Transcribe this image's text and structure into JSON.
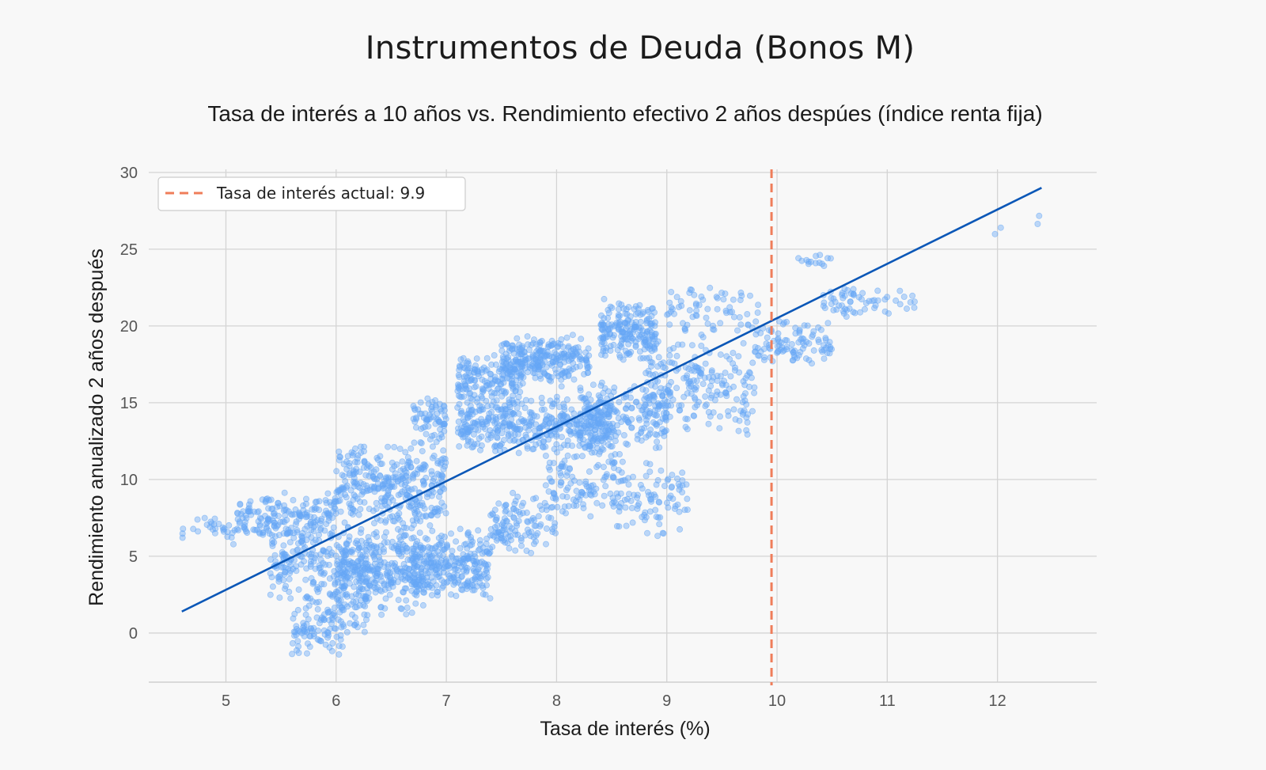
{
  "page": {
    "title": "Instrumentos de Deuda (Bonos M)",
    "subtitle": "Tasa de interés a 10 años vs. Rendimiento efectivo 2 años despúes (índice renta fija)"
  },
  "chart_data": {
    "type": "scatter",
    "xlabel": "Tasa de interés (%)",
    "ylabel": "Rendimiento anualizado 2 años después",
    "xlim": [
      4.3,
      12.9
    ],
    "ylim": [
      -3.2,
      30.2
    ],
    "xticks": [
      5,
      6,
      7,
      8,
      9,
      10,
      11,
      12
    ],
    "yticks": [
      0,
      5,
      10,
      15,
      20,
      25,
      30
    ],
    "grid": true,
    "legend": {
      "placement": "top-left",
      "entries": [
        "Tasa de interés actual: 9.9"
      ]
    },
    "colors": {
      "points": "#66a8f5",
      "trend": "#0b57b7",
      "current_rate": "#ef7d5a",
      "grid": "#d4d4d4"
    },
    "current_rate": {
      "label": "Tasa de interés actual: 9.9",
      "x": 9.95
    },
    "trend_line": {
      "x": [
        4.6,
        12.4
      ],
      "y": [
        1.4,
        29.0
      ]
    },
    "point_clusters": [
      {
        "x": [
          4.6,
          5.8
        ],
        "y": [
          5.5,
          8.0
        ],
        "n": 70
      },
      {
        "x": [
          5.1,
          6.0
        ],
        "y": [
          6.2,
          9.2
        ],
        "n": 150
      },
      {
        "x": [
          5.6,
          6.1
        ],
        "y": [
          -1.5,
          2.0
        ],
        "n": 80
      },
      {
        "x": [
          5.7,
          6.3
        ],
        "y": [
          -0.8,
          4.0
        ],
        "n": 60
      },
      {
        "x": [
          5.4,
          6.4
        ],
        "y": [
          2.0,
          7.0
        ],
        "n": 230
      },
      {
        "x": [
          6.0,
          6.8
        ],
        "y": [
          1.0,
          7.0
        ],
        "n": 280
      },
      {
        "x": [
          6.0,
          7.0
        ],
        "y": [
          6.5,
          12.5
        ],
        "n": 350
      },
      {
        "x": [
          6.7,
          7.4
        ],
        "y": [
          2.0,
          7.0
        ],
        "n": 280
      },
      {
        "x": [
          6.7,
          7.0
        ],
        "y": [
          12.0,
          15.8
        ],
        "n": 70
      },
      {
        "x": [
          7.1,
          7.7
        ],
        "y": [
          14.5,
          18.3
        ],
        "n": 160
      },
      {
        "x": [
          7.1,
          8.5
        ],
        "y": [
          11.5,
          15.5
        ],
        "n": 420
      },
      {
        "x": [
          7.4,
          8.0
        ],
        "y": [
          5.0,
          9.5
        ],
        "n": 120
      },
      {
        "x": [
          7.5,
          8.3
        ],
        "y": [
          16.0,
          19.5
        ],
        "n": 260
      },
      {
        "x": [
          7.9,
          8.6
        ],
        "y": [
          7.5,
          12.0
        ],
        "n": 110
      },
      {
        "x": [
          8.4,
          8.9
        ],
        "y": [
          17.5,
          21.8
        ],
        "n": 200
      },
      {
        "x": [
          8.2,
          9.0
        ],
        "y": [
          11.5,
          16.5
        ],
        "n": 200
      },
      {
        "x": [
          8.5,
          9.2
        ],
        "y": [
          6.0,
          11.5
        ],
        "n": 90
      },
      {
        "x": [
          8.8,
          9.8
        ],
        "y": [
          12.5,
          19.5
        ],
        "n": 210
      },
      {
        "x": [
          9.0,
          9.9
        ],
        "y": [
          19.0,
          23.0
        ],
        "n": 70
      },
      {
        "x": [
          9.8,
          10.5
        ],
        "y": [
          17.0,
          20.5
        ],
        "n": 100
      },
      {
        "x": [
          10.1,
          10.5
        ],
        "y": [
          23.5,
          24.8
        ],
        "n": 14
      },
      {
        "x": [
          10.4,
          11.3
        ],
        "y": [
          20.5,
          22.7
        ],
        "n": 60
      },
      {
        "x": [
          11.5,
          12.4
        ],
        "y": [
          25.8,
          27.3
        ],
        "n": 4
      }
    ]
  }
}
